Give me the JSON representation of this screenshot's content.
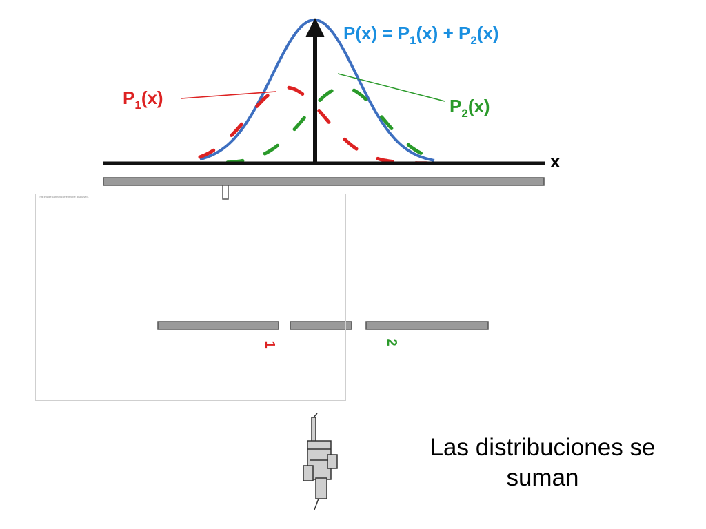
{
  "equation": {
    "lhs": "P(x) = P",
    "s1": "1",
    "mid": "(x) + P",
    "s2": "2",
    "rhs": "(x)"
  },
  "p1_label": {
    "main": "P",
    "sub": "1",
    "tail": "(x)"
  },
  "p2_label": {
    "main": "P",
    "sub": "2",
    "tail": "(x)"
  },
  "x_axis_label": "x",
  "slit_1_label": "1",
  "slit_2_label": "2",
  "broken_image_label": "This image cannot currently be displayed.",
  "caption": {
    "line1": "Las distribuciones se",
    "line2": "suman"
  },
  "colors": {
    "total": "#3d6fc0",
    "p1": "#dd2222",
    "p2": "#2a9a2a",
    "equation": "#1a8fe0",
    "axis": "#111111"
  },
  "icons": {
    "source": "gun-icon"
  }
}
